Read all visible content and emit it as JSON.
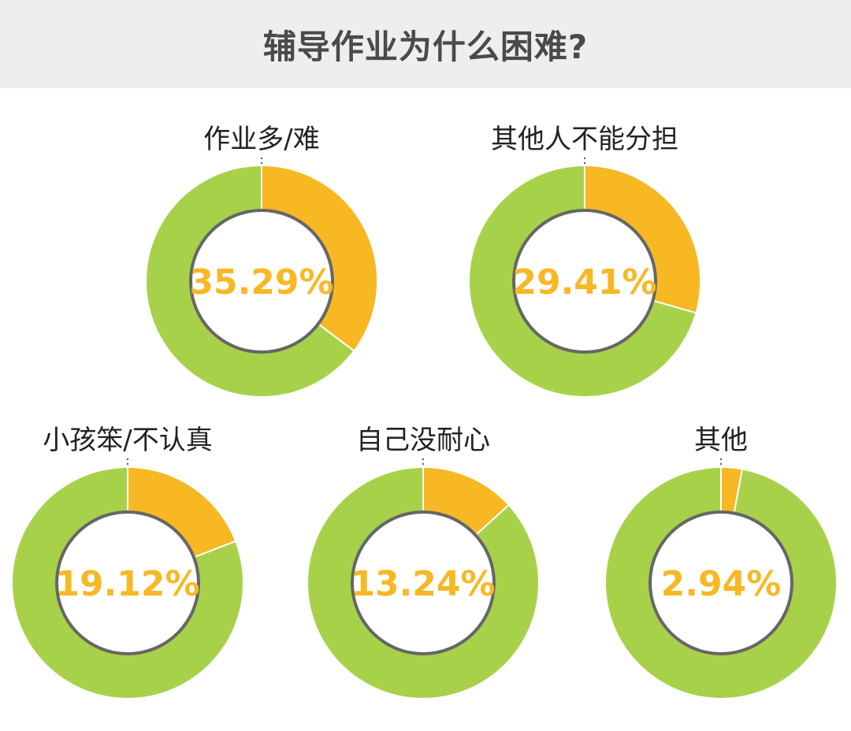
{
  "title": "辅导作业为什么困难?",
  "colors": {
    "highlight": "#f7b824",
    "rest": "#a8d14a",
    "ring_outline": "#666666",
    "center": "#ffffff",
    "header_bg": "#eeeeee",
    "label": "#222222",
    "title": "#4a4a4a"
  },
  "chart_data": {
    "type": "pie",
    "title": "辅导作业为什么困难?",
    "unit": "%",
    "categories": [
      "作业多/难",
      "其他人不能分担",
      "小孩笨/不认真",
      "自己没耐心",
      "其他"
    ],
    "values": [
      35.29,
      29.41,
      19.12,
      13.24,
      2.94
    ],
    "value_labels": [
      "35.29%",
      "29.41%",
      "19.12%",
      "13.24%",
      "2.94%"
    ]
  }
}
